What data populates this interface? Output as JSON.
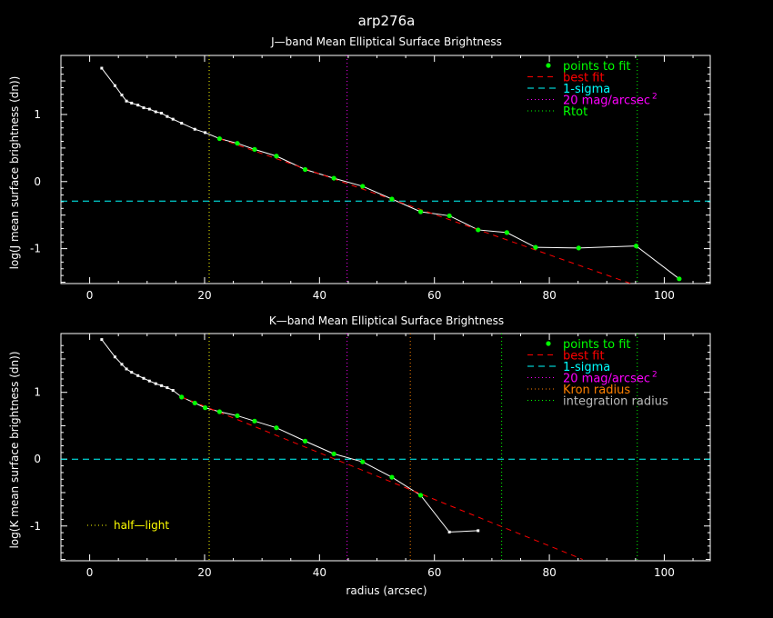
{
  "figure": {
    "title": "arp276a",
    "background": "#000000",
    "axis_color": "#ffffff"
  },
  "colors": {
    "data_line": "#ffffff",
    "fit_point": "#00ff00",
    "best_fit": "#ff0000",
    "sigma": "#00ffff",
    "mag20": "#ff00ff",
    "rtot": "#00ff00",
    "half_light": "#ffff00",
    "kron": "#ff8000",
    "integration": "#00ff00"
  },
  "chart_data": [
    {
      "type": "line",
      "title": "J—band Mean Elliptical Surface Brightness",
      "xlabel": "",
      "ylabel": "log(J mean surface brightness (dn))",
      "xlim": [
        -5,
        108
      ],
      "ylim": [
        -1.52,
        1.88
      ],
      "xticks": [
        "0",
        "20",
        "40",
        "60",
        "80",
        "100"
      ],
      "yticks": [
        "-1",
        "0",
        "1"
      ],
      "series": [
        {
          "name": "profile",
          "x": [
            2.1,
            4.4,
            5.6,
            6.4,
            7.3,
            8.4,
            9.4,
            10.4,
            11.5,
            12.5,
            13.5,
            14.5,
            16.0,
            18.3,
            20.1,
            22.6,
            25.7,
            28.7,
            32.5,
            37.5,
            42.5,
            47.5,
            52.6,
            57.6,
            62.6,
            67.6,
            72.6,
            77.6,
            85.1,
            95.1,
            102.6
          ],
          "y": [
            1.69,
            1.43,
            1.29,
            1.2,
            1.17,
            1.14,
            1.1,
            1.08,
            1.04,
            1.02,
            0.97,
            0.93,
            0.87,
            0.78,
            0.73,
            0.64,
            0.57,
            0.48,
            0.38,
            0.18,
            0.05,
            -0.07,
            -0.26,
            -0.45,
            -0.51,
            -0.72,
            -0.76,
            -0.98,
            -0.99,
            -0.96,
            -1.45
          ]
        },
        {
          "name": "points to fit",
          "x": [
            22.6,
            25.7,
            28.7,
            32.5,
            37.5,
            42.5,
            47.5,
            52.6,
            57.6,
            62.6,
            67.6,
            72.6,
            77.6,
            85.1,
            95.1,
            102.6
          ],
          "y": [
            0.64,
            0.57,
            0.48,
            0.38,
            0.18,
            0.05,
            -0.07,
            -0.26,
            -0.45,
            -0.51,
            -0.72,
            -0.76,
            -0.98,
            -0.99,
            -0.96,
            -1.45
          ]
        },
        {
          "name": "best fit",
          "x": [
            22.6,
            95.5
          ],
          "y": [
            0.64,
            -1.56
          ]
        }
      ],
      "hlines": [
        {
          "name": "1-sigma",
          "y": -0.29
        }
      ],
      "vlines": [
        {
          "name": "half-light",
          "x": 20.8
        },
        {
          "name": "20 mag/arcsec²",
          "x": 44.8
        },
        {
          "name": "Rtot",
          "x": 95.3
        }
      ],
      "legend": {
        "position": "top-right",
        "entries": [
          {
            "label": "points to fit",
            "superscript": ""
          },
          {
            "label": "best fit",
            "superscript": ""
          },
          {
            "label": "1-sigma",
            "superscript": ""
          },
          {
            "label": "20 mag/arcsec",
            "superscript": "2"
          },
          {
            "label": "Rtot",
            "superscript": ""
          }
        ]
      }
    },
    {
      "type": "line",
      "title": "K—band Mean Elliptical Surface Brightness",
      "xlabel": "radius (arcsec)",
      "ylabel": "log(K mean surface brightness (dn))",
      "xlim": [
        -5,
        108
      ],
      "ylim": [
        -1.52,
        1.88
      ],
      "xticks": [
        "0",
        "20",
        "40",
        "60",
        "80",
        "100"
      ],
      "yticks": [
        "-1",
        "0",
        "1"
      ],
      "series": [
        {
          "name": "profile",
          "x": [
            2.1,
            4.4,
            5.6,
            6.4,
            7.3,
            8.4,
            9.4,
            10.4,
            11.5,
            12.5,
            13.5,
            14.5,
            16.0,
            18.3,
            20.1,
            22.6,
            25.7,
            28.7,
            32.5,
            37.5,
            42.5,
            47.5,
            52.6,
            57.6,
            62.6,
            67.6
          ],
          "y": [
            1.79,
            1.53,
            1.42,
            1.35,
            1.3,
            1.25,
            1.21,
            1.17,
            1.13,
            1.1,
            1.07,
            1.03,
            0.93,
            0.84,
            0.77,
            0.71,
            0.65,
            0.57,
            0.47,
            0.27,
            0.08,
            -0.04,
            -0.27,
            -0.54,
            -1.09,
            -1.07
          ]
        },
        {
          "name": "points to fit",
          "x": [
            16.0,
            18.3,
            20.1,
            22.6,
            25.7,
            28.7,
            32.5,
            37.5,
            42.5,
            47.5,
            52.6,
            57.6
          ],
          "y": [
            0.93,
            0.84,
            0.77,
            0.71,
            0.65,
            0.57,
            0.47,
            0.27,
            0.08,
            -0.04,
            -0.27,
            -0.54
          ]
        },
        {
          "name": "best fit",
          "x": [
            16.0,
            85.8
          ],
          "y": [
            0.93,
            -1.5
          ]
        }
      ],
      "hlines": [
        {
          "name": "1-sigma",
          "y": 0.0
        }
      ],
      "vlines": [
        {
          "name": "half-light",
          "x": 20.8
        },
        {
          "name": "20 mag/arcsec²",
          "x": 44.8
        },
        {
          "name": "Kron radius",
          "x": 55.8
        },
        {
          "name": "integration radius",
          "x": 71.7
        },
        {
          "name": "Rtot",
          "x": 95.3
        }
      ],
      "legend": {
        "position": "top-right",
        "entries": [
          {
            "label": "points to fit",
            "superscript": ""
          },
          {
            "label": "best fit",
            "superscript": ""
          },
          {
            "label": "1-sigma",
            "superscript": ""
          },
          {
            "label": "20 mag/arcsec",
            "superscript": "2"
          },
          {
            "label": "Kron radius",
            "superscript": ""
          },
          {
            "label": "integration radius",
            "superscript": ""
          }
        ]
      },
      "annotation": "half—light"
    }
  ]
}
